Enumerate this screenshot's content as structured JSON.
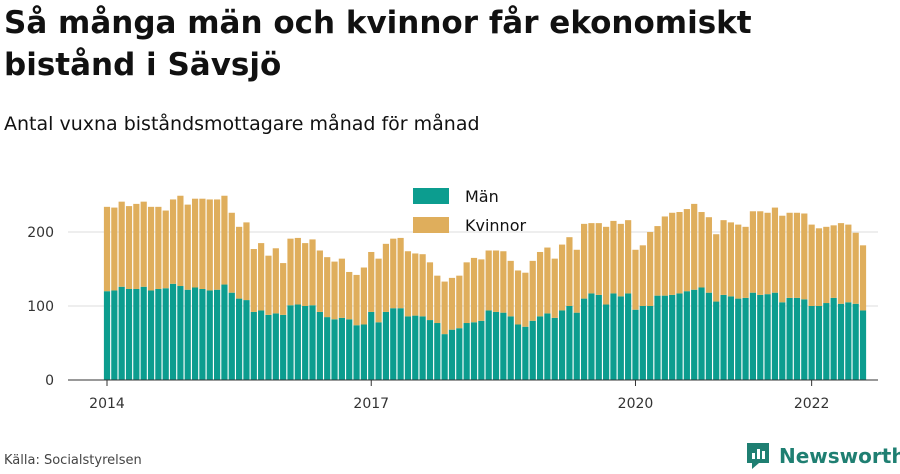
{
  "header": {
    "title": "Så många män och kvinnor får ekonomiskt bistånd i Sävsjö",
    "subtitle": "Antal vuxna biståndsmottagare månad för månad"
  },
  "footer": {
    "source": "Källa: Socialstyrelsen",
    "brand": "Newsworthy"
  },
  "colors": {
    "men": "#0c9d8f",
    "women": "#dfae5c",
    "grid": "#dddddd",
    "brand": "#1f7f72"
  },
  "icons": {
    "brand": "newsworthy-logo-icon"
  },
  "chart_data": {
    "type": "bar",
    "stacked": true,
    "legend_position": "top-center",
    "grid": true,
    "ylim": [
      0,
      250
    ],
    "yticks": [
      0,
      100,
      200
    ],
    "xticks": [
      {
        "label": "2014",
        "index": 0
      },
      {
        "label": "2017",
        "index": 36
      },
      {
        "label": "2020",
        "index": 72
      },
      {
        "label": "2022",
        "index": 96
      }
    ],
    "start": "2014-01",
    "series": [
      {
        "name": "Män",
        "values": [
          120,
          121,
          126,
          123,
          123,
          126,
          121,
          123,
          124,
          130,
          127,
          122,
          125,
          123,
          121,
          122,
          129,
          118,
          110,
          108,
          92,
          94,
          88,
          90,
          88,
          101,
          102,
          100,
          101,
          92,
          85,
          82,
          84,
          82,
          74,
          75,
          92,
          78,
          92,
          97,
          97,
          86,
          87,
          86,
          81,
          77,
          62,
          68,
          70,
          77,
          78,
          80,
          94,
          92,
          91,
          86,
          75,
          72,
          80,
          86,
          90,
          84,
          94,
          100,
          91,
          110,
          117,
          115,
          102,
          117,
          113,
          117,
          95,
          100,
          100,
          114,
          114,
          115,
          117,
          120,
          122,
          125,
          118,
          106,
          115,
          113,
          110,
          111,
          118,
          115,
          116,
          118,
          105,
          111,
          111,
          109,
          100,
          100,
          104,
          111,
          103,
          105,
          103,
          94
        ]
      },
      {
        "name": "Kvinnor",
        "values": [
          114,
          112,
          115,
          112,
          115,
          115,
          113,
          111,
          105,
          114,
          122,
          115,
          120,
          122,
          123,
          122,
          120,
          108,
          97,
          105,
          85,
          91,
          80,
          88,
          70,
          90,
          90,
          85,
          89,
          83,
          81,
          78,
          80,
          64,
          68,
          77,
          81,
          86,
          92,
          94,
          95,
          88,
          84,
          84,
          78,
          64,
          71,
          70,
          71,
          82,
          87,
          83,
          81,
          83,
          83,
          75,
          73,
          73,
          81,
          87,
          89,
          80,
          89,
          93,
          85,
          101,
          95,
          97,
          105,
          98,
          98,
          99,
          81,
          82,
          100,
          94,
          107,
          111,
          110,
          111,
          116,
          102,
          102,
          91,
          101,
          100,
          100,
          96,
          110,
          113,
          110,
          115,
          117,
          115,
          115,
          116,
          110,
          105,
          103,
          98,
          109,
          105,
          96,
          88
        ]
      }
    ]
  }
}
